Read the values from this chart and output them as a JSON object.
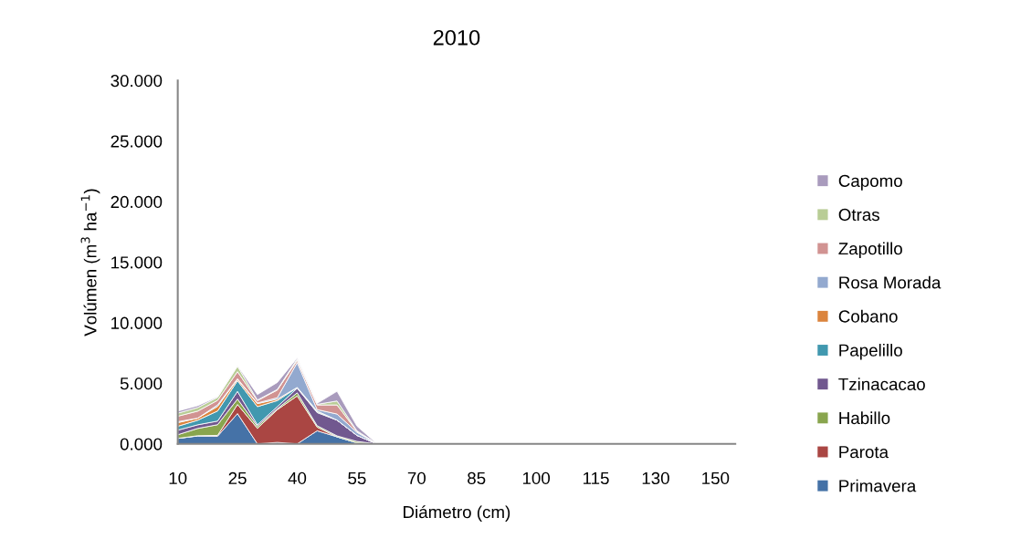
{
  "chart_data": {
    "type": "area",
    "stacked": true,
    "title": "2010",
    "xlabel": "Diámetro (cm)",
    "ylabel": "Volúmen (m$^{3}$ ha$^{−1}$)",
    "categories": [
      "10",
      null,
      null,
      "25",
      null,
      null,
      "40",
      null,
      null,
      "55",
      null,
      null,
      "70",
      null,
      null,
      "85",
      null,
      null,
      "100",
      null,
      null,
      "115",
      null,
      null,
      "130",
      null,
      null,
      "150",
      null
    ],
    "ylim": [
      0,
      30
    ],
    "yticks": [
      {
        "value": 0,
        "label": "0.000"
      },
      {
        "value": 5,
        "label": "5.000"
      },
      {
        "value": 10,
        "label": "10.000"
      },
      {
        "value": 15,
        "label": "15.000"
      },
      {
        "value": 20,
        "label": "20.000"
      },
      {
        "value": 25,
        "label": "25.000"
      },
      {
        "value": 30,
        "label": "30.000"
      }
    ],
    "grid": false,
    "legend": "right",
    "series": [
      {
        "name": "Primavera",
        "color": "#4572a7",
        "values": [
          0.45,
          0.65,
          0.63,
          2.5,
          0,
          0.12,
          0,
          1.08,
          0.58,
          0.08,
          0,
          0,
          0,
          0,
          0,
          0,
          0,
          0,
          0,
          0,
          0,
          0,
          0,
          0,
          0,
          0,
          0,
          0,
          0
        ]
      },
      {
        "name": "Parota",
        "color": "#aa4643",
        "values": [
          0,
          0.02,
          0.07,
          0.75,
          1.28,
          2.7,
          3.96,
          0.3,
          0,
          0,
          0,
          0,
          0,
          0,
          0,
          0,
          0,
          0,
          0,
          0,
          0,
          0,
          0,
          0,
          0,
          0,
          0,
          0,
          0
        ]
      },
      {
        "name": "Habillo",
        "color": "#89a54e",
        "values": [
          0.3,
          0.6,
          0.88,
          0.45,
          0.17,
          0.08,
          0.25,
          0.12,
          0.08,
          0.12,
          0,
          0,
          0,
          0,
          0,
          0,
          0,
          0,
          0,
          0,
          0,
          0,
          0,
          0,
          0,
          0,
          0,
          0,
          0
        ]
      },
      {
        "name": "Tzinacacao",
        "color": "#71588f",
        "values": [
          0.38,
          0.3,
          0.3,
          0.63,
          0.12,
          0.17,
          0.38,
          1.08,
          1.3,
          0.5,
          0,
          0,
          0,
          0,
          0,
          0,
          0,
          0,
          0,
          0,
          0,
          0,
          0,
          0,
          0,
          0,
          0,
          0,
          0
        ]
      },
      {
        "name": "Papelillo",
        "color": "#4198af",
        "values": [
          0.32,
          0.38,
          0.83,
          0.88,
          1.5,
          0.5,
          0.05,
          0.08,
          0,
          0,
          0,
          0,
          0,
          0,
          0,
          0,
          0,
          0,
          0,
          0,
          0,
          0,
          0,
          0,
          0,
          0,
          0,
          0,
          0
        ]
      },
      {
        "name": "Cobano",
        "color": "#db843d",
        "values": [
          0.3,
          0.17,
          0.38,
          0.12,
          0.25,
          0.12,
          0.02,
          0.05,
          0,
          0,
          0,
          0,
          0,
          0,
          0,
          0,
          0,
          0,
          0,
          0,
          0,
          0,
          0,
          0,
          0,
          0,
          0,
          0,
          0
        ]
      },
      {
        "name": "Rosa Morada",
        "color": "#93a9cf",
        "values": [
          0.08,
          0,
          0.12,
          0.05,
          0.05,
          0.12,
          2.05,
          0.12,
          0.5,
          0.25,
          0,
          0,
          0,
          0,
          0,
          0,
          0,
          0,
          0,
          0,
          0,
          0,
          0,
          0,
          0,
          0,
          0,
          0,
          0
        ]
      },
      {
        "name": "Zapotillo",
        "color": "#d19392",
        "values": [
          0.45,
          0.58,
          0.38,
          0.58,
          0.2,
          0.63,
          0.18,
          0.38,
          0.75,
          0.08,
          0,
          0,
          0,
          0,
          0,
          0,
          0,
          0,
          0,
          0,
          0,
          0,
          0,
          0,
          0,
          0,
          0,
          0,
          0
        ]
      },
      {
        "name": "Otras",
        "color": "#b9cd96",
        "values": [
          0.25,
          0.3,
          0.25,
          0.45,
          0.05,
          0.05,
          0.12,
          0.05,
          0.33,
          0.05,
          0.02,
          0,
          0,
          0,
          0,
          0,
          0,
          0,
          0,
          0,
          0,
          0,
          0,
          0,
          0,
          0,
          0,
          0,
          0
        ]
      },
      {
        "name": "Capomo",
        "color": "#a99bbd",
        "values": [
          0.17,
          0.15,
          0.05,
          0.05,
          0.45,
          0.58,
          0.08,
          0.08,
          0.8,
          0.38,
          0,
          0,
          0,
          0,
          0,
          0,
          0,
          0,
          0,
          0,
          0,
          0,
          0,
          0,
          0,
          0,
          0,
          0,
          0
        ]
      }
    ]
  }
}
